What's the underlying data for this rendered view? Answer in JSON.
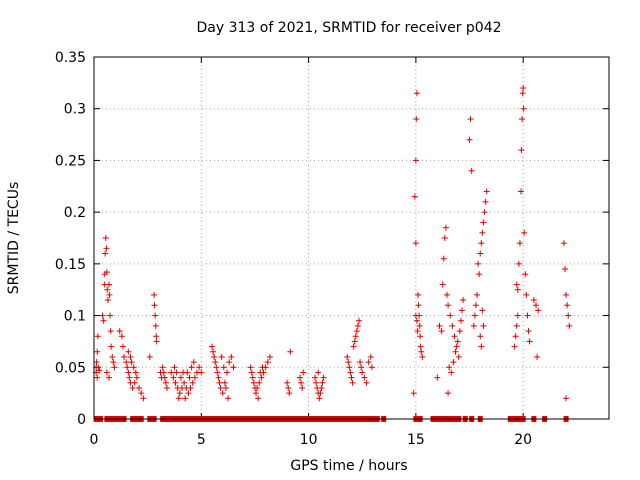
{
  "chart_data": {
    "type": "scatter",
    "title": "Day 313 of 2021, SRMTID for receiver p042",
    "xlabel": "GPS time / hours",
    "ylabel": "SRMTID / TECUs",
    "xlim": [
      0,
      24
    ],
    "ylim": [
      0,
      0.35
    ],
    "xticks": [
      {
        "value": 0,
        "label": "0"
      },
      {
        "value": 5,
        "label": "5"
      },
      {
        "value": 10,
        "label": "10"
      },
      {
        "value": 15,
        "label": "15"
      },
      {
        "value": 20,
        "label": "20"
      }
    ],
    "yticks": [
      {
        "value": 0,
        "label": "0"
      },
      {
        "value": 0.05,
        "label": "0.05"
      },
      {
        "value": 0.1,
        "label": "0.1"
      },
      {
        "value": 0.15,
        "label": "0.15"
      },
      {
        "value": 0.2,
        "label": "0.2"
      },
      {
        "value": 0.25,
        "label": "0.25"
      },
      {
        "value": 0.3,
        "label": "0.3"
      },
      {
        "value": 0.35,
        "label": "0.35"
      }
    ],
    "grid": true,
    "marker_color": "#e00000",
    "series": [
      {
        "name": "SRMTID",
        "marker": "plus",
        "points": [
          [
            0.1,
            0.045
          ],
          [
            0.1,
            0.05
          ],
          [
            0.12,
            0.055
          ],
          [
            0.15,
            0.04
          ],
          [
            0.15,
            0.065
          ],
          [
            0.18,
            0.08
          ],
          [
            0.2,
            0.05
          ],
          [
            0.25,
            0.047
          ],
          [
            0.4,
            0.1
          ],
          [
            0.45,
            0.095
          ],
          [
            0.5,
            0.13
          ],
          [
            0.5,
            0.14
          ],
          [
            0.52,
            0.16
          ],
          [
            0.55,
            0.175
          ],
          [
            0.58,
            0.165
          ],
          [
            0.6,
            0.142
          ],
          [
            0.62,
            0.125
          ],
          [
            0.65,
            0.115
          ],
          [
            0.7,
            0.13
          ],
          [
            0.72,
            0.12
          ],
          [
            0.75,
            0.1
          ],
          [
            0.78,
            0.085
          ],
          [
            0.8,
            0.07
          ],
          [
            0.85,
            0.06
          ],
          [
            0.9,
            0.055
          ],
          [
            0.95,
            0.05
          ],
          [
            0.7,
            0.04
          ],
          [
            0.6,
            0.045
          ],
          [
            1.2,
            0.085
          ],
          [
            1.3,
            0.08
          ],
          [
            1.35,
            0.07
          ],
          [
            1.4,
            0.06
          ],
          [
            1.5,
            0.055
          ],
          [
            1.55,
            0.05
          ],
          [
            1.6,
            0.045
          ],
          [
            1.65,
            0.04
          ],
          [
            1.7,
            0.035
          ],
          [
            1.8,
            0.03
          ],
          [
            1.9,
            0.035
          ],
          [
            2.0,
            0.04
          ],
          [
            1.75,
            0.055
          ],
          [
            1.85,
            0.05
          ],
          [
            1.95,
            0.045
          ],
          [
            2.1,
            0.03
          ],
          [
            2.2,
            0.025
          ],
          [
            2.3,
            0.02
          ],
          [
            1.6,
            0.065
          ],
          [
            1.7,
            0.06
          ],
          [
            2.8,
            0.12
          ],
          [
            2.82,
            0.11
          ],
          [
            2.85,
            0.1
          ],
          [
            2.88,
            0.09
          ],
          [
            2.9,
            0.08
          ],
          [
            2.92,
            0.075
          ],
          [
            2.6,
            0.06
          ],
          [
            3.2,
            0.05
          ],
          [
            3.25,
            0.045
          ],
          [
            3.3,
            0.04
          ],
          [
            3.35,
            0.035
          ],
          [
            3.4,
            0.03
          ],
          [
            3.1,
            0.045
          ],
          [
            3.15,
            0.04
          ],
          [
            3.6,
            0.045
          ],
          [
            3.7,
            0.04
          ],
          [
            3.8,
            0.035
          ],
          [
            3.9,
            0.03
          ],
          [
            4.0,
            0.025
          ],
          [
            4.1,
            0.03
          ],
          [
            4.2,
            0.035
          ],
          [
            4.3,
            0.03
          ],
          [
            4.4,
            0.025
          ],
          [
            4.5,
            0.03
          ],
          [
            4.6,
            0.035
          ],
          [
            4.7,
            0.04
          ],
          [
            4.8,
            0.045
          ],
          [
            4.9,
            0.05
          ],
          [
            5.0,
            0.045
          ],
          [
            4.25,
            0.02
          ],
          [
            4.35,
            0.045
          ],
          [
            4.45,
            0.04
          ],
          [
            4.55,
            0.05
          ],
          [
            4.65,
            0.055
          ],
          [
            3.75,
            0.05
          ],
          [
            3.85,
            0.045
          ],
          [
            3.95,
            0.02
          ],
          [
            4.05,
            0.04
          ],
          [
            4.15,
            0.045
          ],
          [
            5.5,
            0.07
          ],
          [
            5.6,
            0.06
          ],
          [
            5.65,
            0.055
          ],
          [
            5.7,
            0.05
          ],
          [
            5.75,
            0.045
          ],
          [
            5.8,
            0.04
          ],
          [
            5.85,
            0.035
          ],
          [
            5.9,
            0.03
          ],
          [
            6.0,
            0.025
          ],
          [
            6.1,
            0.035
          ],
          [
            6.2,
            0.045
          ],
          [
            6.3,
            0.055
          ],
          [
            6.4,
            0.06
          ],
          [
            6.5,
            0.05
          ],
          [
            5.55,
            0.065
          ],
          [
            5.95,
            0.06
          ],
          [
            6.05,
            0.05
          ],
          [
            6.15,
            0.03
          ],
          [
            6.25,
            0.02
          ],
          [
            7.3,
            0.05
          ],
          [
            7.35,
            0.045
          ],
          [
            7.4,
            0.04
          ],
          [
            7.45,
            0.035
          ],
          [
            7.5,
            0.03
          ],
          [
            7.55,
            0.025
          ],
          [
            7.6,
            0.03
          ],
          [
            7.7,
            0.035
          ],
          [
            7.8,
            0.04
          ],
          [
            7.9,
            0.045
          ],
          [
            8.0,
            0.05
          ],
          [
            8.1,
            0.055
          ],
          [
            8.2,
            0.06
          ],
          [
            7.65,
            0.02
          ],
          [
            7.75,
            0.045
          ],
          [
            7.85,
            0.05
          ],
          [
            9.0,
            0.035
          ],
          [
            9.05,
            0.03
          ],
          [
            9.1,
            0.025
          ],
          [
            9.15,
            0.065
          ],
          [
            9.6,
            0.04
          ],
          [
            9.65,
            0.035
          ],
          [
            9.7,
            0.03
          ],
          [
            9.75,
            0.045
          ],
          [
            10.3,
            0.04
          ],
          [
            10.35,
            0.035
          ],
          [
            10.4,
            0.03
          ],
          [
            10.45,
            0.025
          ],
          [
            10.5,
            0.02
          ],
          [
            10.55,
            0.025
          ],
          [
            10.6,
            0.03
          ],
          [
            10.65,
            0.035
          ],
          [
            10.7,
            0.04
          ],
          [
            10.45,
            0.045
          ],
          [
            11.8,
            0.06
          ],
          [
            11.85,
            0.055
          ],
          [
            11.9,
            0.05
          ],
          [
            11.95,
            0.045
          ],
          [
            12.0,
            0.04
          ],
          [
            12.05,
            0.035
          ],
          [
            12.1,
            0.07
          ],
          [
            12.15,
            0.075
          ],
          [
            12.2,
            0.08
          ],
          [
            12.25,
            0.085
          ],
          [
            12.3,
            0.09
          ],
          [
            12.35,
            0.095
          ],
          [
            12.4,
            0.055
          ],
          [
            12.45,
            0.05
          ],
          [
            12.5,
            0.045
          ],
          [
            12.6,
            0.04
          ],
          [
            12.7,
            0.035
          ],
          [
            12.8,
            0.055
          ],
          [
            12.9,
            0.06
          ],
          [
            12.95,
            0.05
          ],
          [
            14.9,
            0.025
          ],
          [
            14.95,
            0.215
          ],
          [
            15.0,
            0.25
          ],
          [
            15.02,
            0.29
          ],
          [
            15.05,
            0.315
          ],
          [
            15.0,
            0.17
          ],
          [
            15.1,
            0.12
          ],
          [
            15.12,
            0.11
          ],
          [
            15.15,
            0.1
          ],
          [
            15.18,
            0.09
          ],
          [
            15.2,
            0.08
          ],
          [
            15.22,
            0.07
          ],
          [
            15.25,
            0.065
          ],
          [
            15.3,
            0.06
          ],
          [
            15.0,
            0.1
          ],
          [
            15.05,
            0.095
          ],
          [
            15.08,
            0.085
          ],
          [
            16.0,
            0.04
          ],
          [
            16.1,
            0.09
          ],
          [
            16.2,
            0.085
          ],
          [
            16.25,
            0.13
          ],
          [
            16.3,
            0.155
          ],
          [
            16.35,
            0.175
          ],
          [
            16.4,
            0.185
          ],
          [
            16.45,
            0.12
          ],
          [
            16.5,
            0.11
          ],
          [
            16.6,
            0.1
          ],
          [
            16.7,
            0.09
          ],
          [
            16.8,
            0.08
          ],
          [
            16.9,
            0.07
          ],
          [
            17.0,
            0.06
          ],
          [
            16.55,
            0.05
          ],
          [
            16.65,
            0.045
          ],
          [
            16.75,
            0.055
          ],
          [
            16.85,
            0.065
          ],
          [
            16.95,
            0.075
          ],
          [
            17.05,
            0.085
          ],
          [
            17.1,
            0.095
          ],
          [
            17.15,
            0.105
          ],
          [
            17.2,
            0.115
          ],
          [
            16.5,
            0.025
          ],
          [
            17.5,
            0.27
          ],
          [
            17.55,
            0.29
          ],
          [
            17.6,
            0.24
          ],
          [
            17.7,
            0.09
          ],
          [
            17.75,
            0.1
          ],
          [
            17.8,
            0.11
          ],
          [
            17.85,
            0.12
          ],
          [
            17.9,
            0.15
          ],
          [
            17.95,
            0.14
          ],
          [
            18.0,
            0.16
          ],
          [
            18.05,
            0.17
          ],
          [
            18.1,
            0.18
          ],
          [
            18.15,
            0.19
          ],
          [
            18.2,
            0.2
          ],
          [
            18.25,
            0.21
          ],
          [
            18.3,
            0.22
          ],
          [
            18.0,
            0.08
          ],
          [
            18.05,
            0.07
          ],
          [
            18.1,
            0.105
          ],
          [
            18.15,
            0.09
          ],
          [
            19.6,
            0.07
          ],
          [
            19.65,
            0.08
          ],
          [
            19.7,
            0.09
          ],
          [
            19.75,
            0.1
          ],
          [
            19.8,
            0.15
          ],
          [
            19.85,
            0.17
          ],
          [
            19.9,
            0.22
          ],
          [
            19.92,
            0.26
          ],
          [
            19.95,
            0.29
          ],
          [
            19.98,
            0.315
          ],
          [
            20.0,
            0.32
          ],
          [
            20.02,
            0.3
          ],
          [
            20.05,
            0.18
          ],
          [
            20.1,
            0.14
          ],
          [
            20.15,
            0.12
          ],
          [
            20.2,
            0.1
          ],
          [
            20.25,
            0.085
          ],
          [
            20.3,
            0.075
          ],
          [
            19.7,
            0.13
          ],
          [
            19.75,
            0.125
          ],
          [
            20.5,
            0.115
          ],
          [
            20.6,
            0.11
          ],
          [
            20.65,
            0.06
          ],
          [
            20.7,
            0.105
          ],
          [
            21.9,
            0.17
          ],
          [
            21.95,
            0.145
          ],
          [
            22.0,
            0.12
          ],
          [
            22.05,
            0.11
          ],
          [
            22.1,
            0.1
          ],
          [
            22.15,
            0.09
          ],
          [
            22.0,
            0.02
          ]
        ]
      }
    ],
    "baseline_points_x": [
      0.1,
      0.2,
      0.3,
      0.6,
      0.7,
      0.8,
      1.0,
      1.1,
      1.2,
      1.3,
      1.4,
      1.8,
      2.0,
      2.2,
      2.6,
      2.8,
      3.2,
      3.4,
      3.6,
      3.8,
      4.0,
      4.2,
      4.4,
      4.6,
      4.8,
      5.0,
      5.2,
      5.4,
      5.6,
      5.8,
      6.0,
      6.2,
      6.4,
      6.6,
      6.8,
      7.0,
      7.2,
      7.4,
      7.6,
      7.8,
      8.0,
      8.2,
      8.4,
      8.6,
      8.8,
      9.0,
      9.2,
      9.4,
      9.6,
      9.8,
      10.0,
      10.2,
      10.4,
      10.6,
      10.8,
      11.0,
      11.2,
      11.4,
      11.6,
      11.8,
      12.0,
      12.2,
      12.4,
      12.6,
      12.8,
      13.0,
      13.2,
      13.5,
      15.0,
      15.1,
      15.2,
      15.8,
      16.0,
      16.2,
      16.4,
      16.6,
      16.8,
      17.0,
      17.3,
      17.6,
      18.0,
      19.4,
      19.5,
      19.7,
      19.8,
      20.0,
      20.5,
      21.0,
      22.0
    ]
  }
}
